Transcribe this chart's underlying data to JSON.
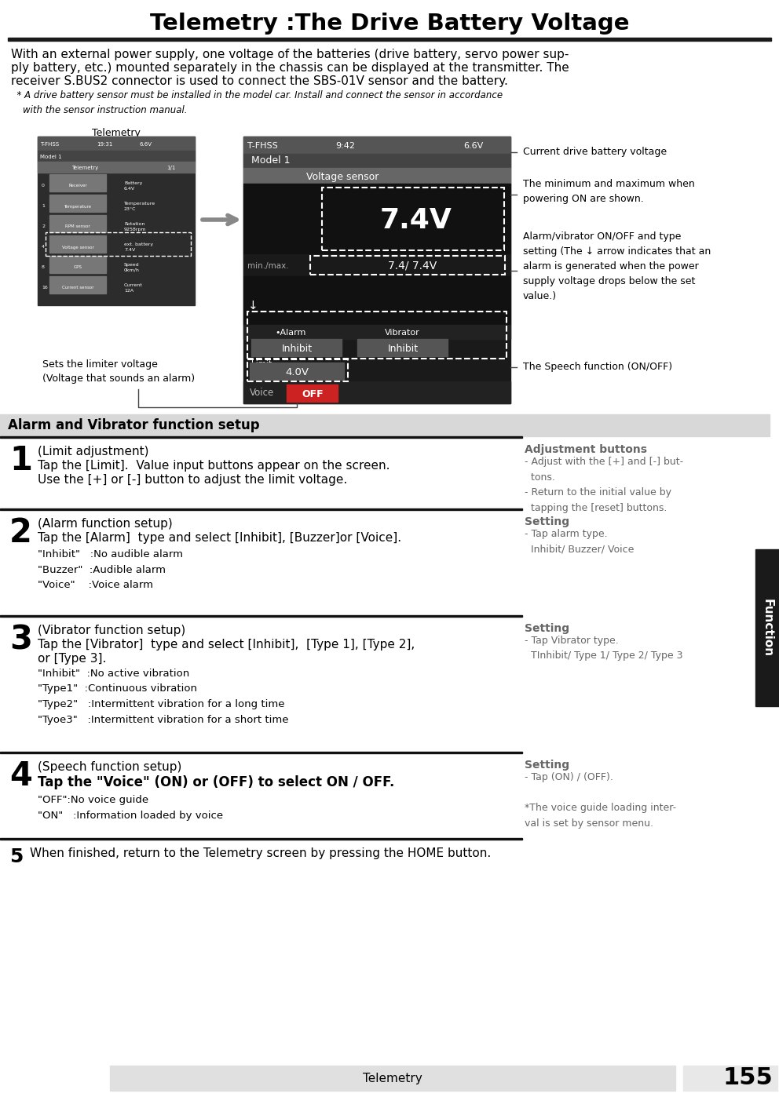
{
  "title": "Telemetry :The Drive Battery Voltage",
  "bg_color": "#ffffff",
  "intro_text_line1": "With an external power supply, one voltage of the batteries (drive battery, servo power sup-",
  "intro_text_line2": "ply battery, etc.) mounted separately in the chassis can be displayed at the transmitter. The",
  "intro_text_line3": "receiver S.BUS2 connector is used to connect the SBS-01V sensor and the battery.",
  "note_text": "  * A drive battery sensor must be installed in the model car. Install and connect the sensor in accordance\n    with the sensor instruction manual.",
  "callout_current": "Current drive battery voltage",
  "callout_minmax": "The minimum and maximum when\npowering ON are shown.",
  "callout_alarm": "Alarm/vibrator ON/OFF and type\nsetting (The ↓ arrow indicates that an\nalarm is generated when the power\nsupply voltage drops below the set\nvalue.)",
  "callout_limit_line1": "Sets the limiter voltage",
  "callout_limit_line2": "(Voltage that sounds an alarm)",
  "callout_speech": "The Speech function (ON/OFF)",
  "section_header_text": "Alarm and Vibrator function setup",
  "step1_title": "(Limit adjustment)",
  "step1_line1": "Tap the [Limit].  Value input buttons appear on the screen.",
  "step1_line2": "Use the [+] or [-] button to adjust the limit voltage.",
  "step2_title": "(Alarm function setup)",
  "step2_line1": "Tap the [Alarm]  type and select [Inhibit], [Buzzer]or [Voice].",
  "step2_sub": "\"Inhibit\"   :No audible alarm\n\"Buzzer\"  :Audible alarm\n\"Voice\"    :Voice alarm",
  "step3_title": "(Vibrator function setup)",
  "step3_line1": "Tap the [Vibrator]  type and select [Inhibit],  [Type 1], [Type 2],",
  "step3_line2": "or [Type 3].",
  "step3_sub": "\"Inhibit\"  :No active vibration\n\"Type1\"  :Continuous vibration\n\"Type2\"   :Intermittent vibration for a long time\n\"Tyoe3\"   :Intermittent vibration for a short time",
  "step4_title": "(Speech function setup)",
  "step4_line1": "Tap the \"Voice\" (ON) or (OFF) to select ON / OFF.",
  "step4_sub": "\"OFF\":No voice guide\n\"ON\"   :Information loaded by voice",
  "step5_line1": "When finished, return to the Telemetry screen by pressing the HOME button.",
  "right1_title": "Adjustment buttons",
  "right1_body": "- Adjust with the [+] and [-] but-\n  tons.\n- Return to the initial value by\n  tapping the [reset] buttons.",
  "right2_title": "Setting",
  "right2_body": "- Tap alarm type.\n  Inhibit/ Buzzer/ Voice",
  "right3_title": "Setting",
  "right3_body": "- Tap Vibrator type.\n  TInhibit/ Type 1/ Type 2/ Type 3",
  "right4_title": "Setting",
  "right4_body": "- Tap (ON) / (OFF).",
  "right4_note": "*The voice guide loading inter-\nval is set by sensor menu.",
  "footer_text": "Telemetry",
  "page_number": "155",
  "tab_text": "Function",
  "tab_color": "#1a1a1a"
}
